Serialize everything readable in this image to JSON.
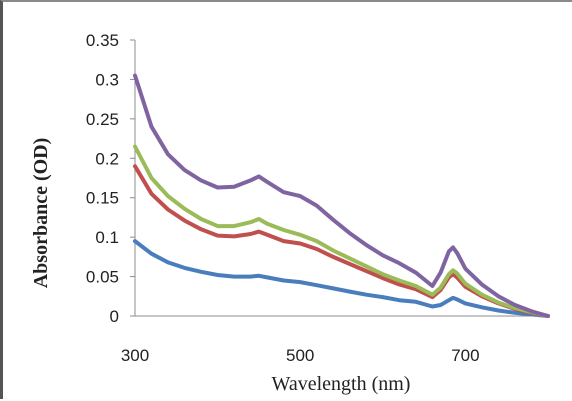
{
  "chart_data": {
    "type": "line",
    "title": "",
    "xlabel": "Wavelength  (nm)",
    "ylabel": "Absorbance (OD)",
    "xlim": [
      300,
      800
    ],
    "ylim": [
      0,
      0.35
    ],
    "xticks": [
      300,
      500,
      700
    ],
    "xtick_labels": [
      "300",
      "500",
      "700"
    ],
    "yticks": [
      0,
      0.05,
      0.1,
      0.15,
      0.2,
      0.25,
      0.3,
      0.35
    ],
    "ytick_labels": [
      "0",
      "0.05",
      "0.1",
      "0.15",
      "0.2",
      "0.25",
      "0.3",
      "0.35"
    ],
    "grid": false,
    "legend": "none",
    "series": [
      {
        "color": "#4a7dbd",
        "x": [
          300,
          320,
          340,
          360,
          380,
          400,
          420,
          440,
          450,
          460,
          480,
          500,
          520,
          540,
          560,
          580,
          600,
          620,
          640,
          660,
          670,
          680,
          685,
          690,
          700,
          720,
          740,
          760,
          780,
          800
        ],
        "y": [
          0.095,
          0.079,
          0.068,
          0.061,
          0.056,
          0.052,
          0.05,
          0.05,
          0.051,
          0.049,
          0.045,
          0.043,
          0.039,
          0.035,
          0.031,
          0.027,
          0.024,
          0.02,
          0.018,
          0.012,
          0.014,
          0.02,
          0.023,
          0.021,
          0.016,
          0.011,
          0.007,
          0.004,
          0.002,
          0.0
        ]
      },
      {
        "color": "#c0504d",
        "x": [
          300,
          320,
          340,
          360,
          380,
          400,
          420,
          440,
          450,
          460,
          480,
          500,
          520,
          540,
          560,
          580,
          600,
          620,
          640,
          660,
          670,
          680,
          685,
          690,
          700,
          720,
          740,
          760,
          780,
          800
        ],
        "y": [
          0.19,
          0.155,
          0.135,
          0.121,
          0.11,
          0.102,
          0.101,
          0.104,
          0.107,
          0.103,
          0.095,
          0.092,
          0.085,
          0.075,
          0.066,
          0.057,
          0.048,
          0.04,
          0.034,
          0.024,
          0.033,
          0.049,
          0.053,
          0.049,
          0.037,
          0.025,
          0.016,
          0.009,
          0.004,
          0.0
        ]
      },
      {
        "color": "#9bbb59",
        "x": [
          300,
          320,
          340,
          360,
          380,
          400,
          420,
          440,
          450,
          460,
          480,
          500,
          520,
          540,
          560,
          580,
          600,
          620,
          640,
          660,
          670,
          680,
          685,
          690,
          700,
          720,
          740,
          760,
          780,
          800
        ],
        "y": [
          0.215,
          0.175,
          0.152,
          0.136,
          0.123,
          0.114,
          0.114,
          0.119,
          0.123,
          0.117,
          0.109,
          0.103,
          0.095,
          0.083,
          0.073,
          0.063,
          0.053,
          0.045,
          0.038,
          0.027,
          0.036,
          0.053,
          0.058,
          0.054,
          0.041,
          0.027,
          0.017,
          0.01,
          0.005,
          0.0
        ]
      },
      {
        "color": "#8064a2",
        "x": [
          300,
          320,
          340,
          360,
          380,
          400,
          420,
          440,
          450,
          460,
          480,
          500,
          520,
          540,
          560,
          580,
          600,
          620,
          640,
          660,
          670,
          680,
          685,
          690,
          700,
          720,
          740,
          760,
          780,
          800
        ],
        "y": [
          0.305,
          0.24,
          0.205,
          0.185,
          0.172,
          0.163,
          0.164,
          0.172,
          0.177,
          0.17,
          0.157,
          0.152,
          0.14,
          0.122,
          0.105,
          0.09,
          0.077,
          0.067,
          0.055,
          0.038,
          0.055,
          0.082,
          0.087,
          0.08,
          0.06,
          0.04,
          0.025,
          0.014,
          0.006,
          0.0
        ]
      }
    ]
  }
}
